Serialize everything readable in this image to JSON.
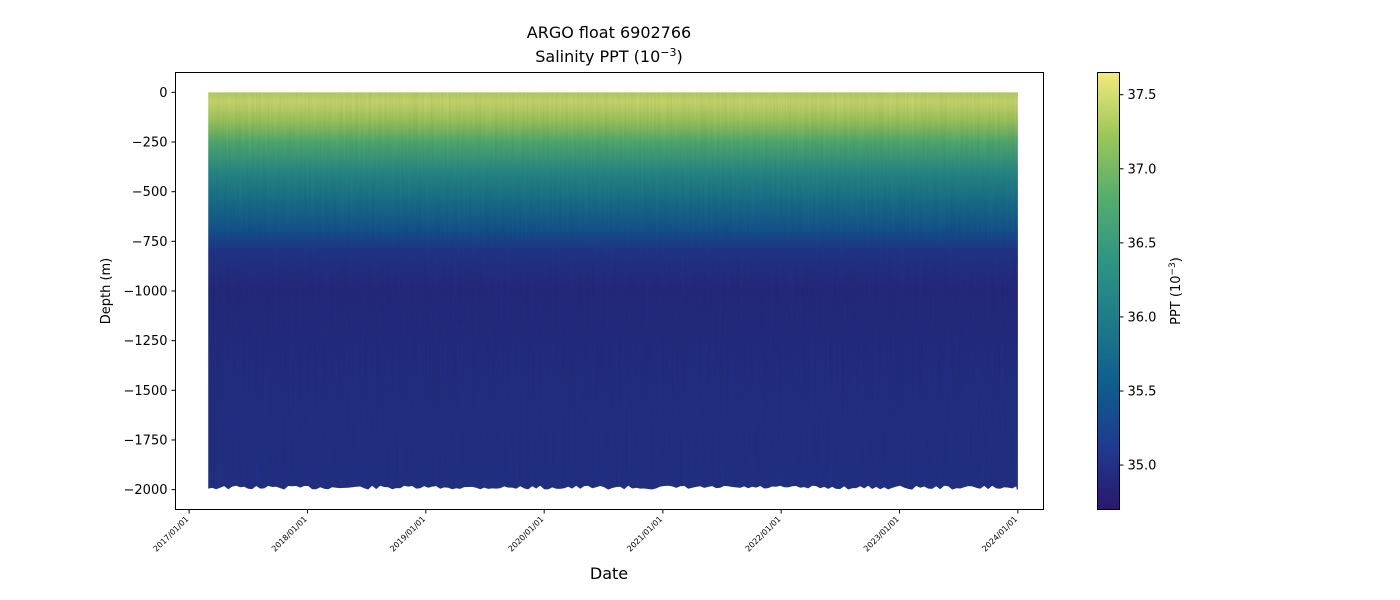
{
  "chart_data": {
    "type": "heatmap",
    "title": "ARGO float 6902766",
    "subtitle_text": "Salinity PPT (10",
    "subtitle_sup": "−3",
    "subtitle_end": ")",
    "xlabel": "Date",
    "ylabel": "Depth (m)",
    "colorbar_label_text": "PPT (10",
    "colorbar_label_sup": "−3",
    "colorbar_label_end": ")",
    "colormap": "haline",
    "colormap_stops": [
      "#2a186c",
      "#1f3b8f",
      "#0f5d8c",
      "#1e7a8a",
      "#2f9583",
      "#56ad6d",
      "#9cc65a",
      "#f4e97f"
    ],
    "xlim": [
      "2016-11-20",
      "2024-03-20"
    ],
    "ylim": [
      -2100,
      100
    ],
    "data_time_range": [
      "2017-03-01",
      "2024-01-01"
    ],
    "data_depth_range": [
      0,
      -2000
    ],
    "x_ticks": [
      "2017/01/01",
      "2018/01/01",
      "2019/01/01",
      "2020/01/01",
      "2021/01/01",
      "2022/01/01",
      "2023/01/01",
      "2024/01/01"
    ],
    "y_ticks": [
      0,
      -250,
      -500,
      -750,
      -1000,
      -1250,
      -1500,
      -1750,
      -2000
    ],
    "y_tick_labels": [
      "0",
      "−250",
      "−500",
      "−750",
      "−1000",
      "−1250",
      "−1500",
      "−1750",
      "−2000"
    ],
    "colorbar_range": [
      34.7,
      37.65
    ],
    "colorbar_ticks": [
      35.0,
      35.5,
      36.0,
      36.5,
      37.0,
      37.5
    ],
    "colorbar_tick_labels": [
      "35.0",
      "35.5",
      "36.0",
      "36.5",
      "37.0",
      "37.5"
    ],
    "salinity_profile": [
      {
        "depth": 0,
        "value": 37.35
      },
      {
        "depth": -50,
        "value": 37.45
      },
      {
        "depth": -150,
        "value": 37.2
      },
      {
        "depth": -250,
        "value": 36.75
      },
      {
        "depth": -400,
        "value": 36.2
      },
      {
        "depth": -550,
        "value": 35.8
      },
      {
        "depth": -700,
        "value": 35.4
      },
      {
        "depth": -800,
        "value": 35.05
      },
      {
        "depth": -1000,
        "value": 34.9
      },
      {
        "depth": -1300,
        "value": 34.95
      },
      {
        "depth": -2000,
        "value": 35.0
      }
    ]
  }
}
